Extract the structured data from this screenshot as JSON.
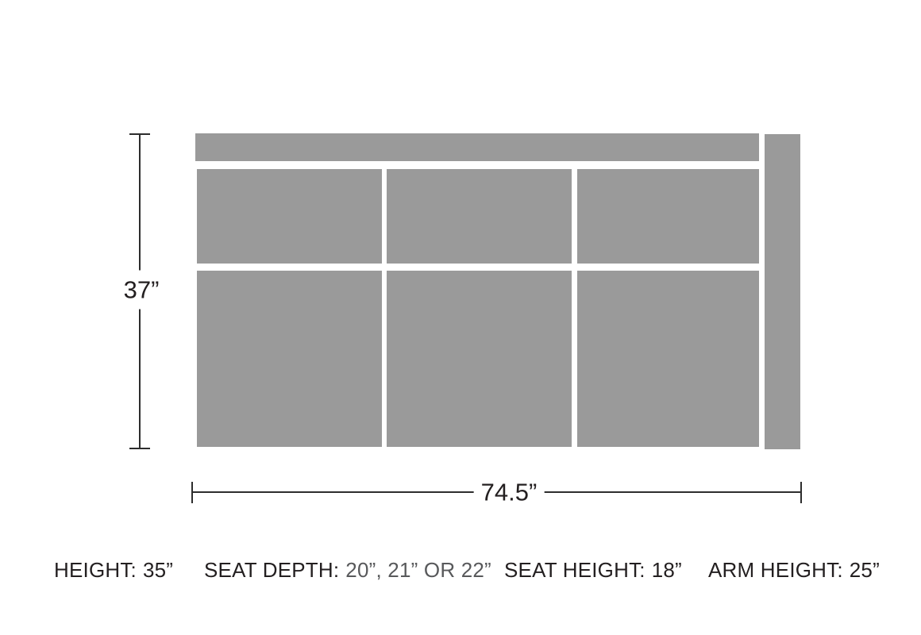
{
  "colors": {
    "background": "#ffffff",
    "cushion": "#9a9a9a",
    "line": "#2d2d2d",
    "text": "#231f20",
    "muted_text": "#58595b"
  },
  "dimensions": {
    "depth_label": "37”",
    "width_label": "74.5”"
  },
  "specs": [
    {
      "label": "HEIGHT:",
      "value": "35”",
      "muted": false
    },
    {
      "label": "SEAT DEPTH:",
      "value": "20”, 21” OR 22”",
      "muted": true
    },
    {
      "label": "SEAT HEIGHT:",
      "value": "18”",
      "muted": false
    },
    {
      "label": "ARM HEIGHT:",
      "value": "25”",
      "muted": false
    }
  ]
}
